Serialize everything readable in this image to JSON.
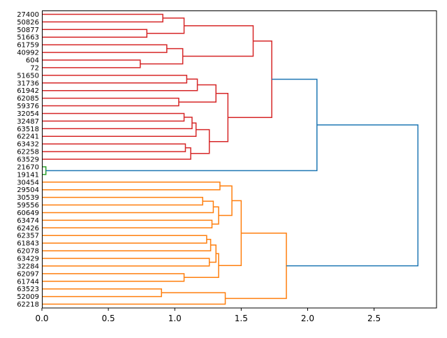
{
  "chart_data": {
    "type": "dendrogram",
    "orientation": "right",
    "xlim": [
      0,
      2.97
    ],
    "xticks": [
      "0.0",
      "0.5",
      "1.0",
      "1.5",
      "2.0",
      "2.5"
    ],
    "xtick_values": [
      0,
      0.5,
      1.0,
      1.5,
      2.0,
      2.5
    ],
    "xlabel": "",
    "ylabel": "",
    "title": "",
    "colors": {
      "red": "#d62728",
      "orange": "#ff7f0e",
      "green": "#2ca02c",
      "blue": "#1f77b4"
    },
    "tree": {
      "h": 2.83,
      "color": "blue",
      "c": [
        {
          "h": 2.07,
          "color": "blue",
          "c": [
            {
              "h": 1.73,
              "color": "red",
              "c": [
                {
                  "h": 1.59,
                  "c": [
                    {
                      "h": 1.07,
                      "c": [
                        {
                          "h": 0.91,
                          "c": [
                            "27400",
                            "50826"
                          ]
                        },
                        {
                          "h": 0.79,
                          "c": [
                            "50877",
                            "51663"
                          ]
                        }
                      ]
                    },
                    {
                      "h": 1.06,
                      "c": [
                        {
                          "h": 0.94,
                          "c": [
                            "61759",
                            "40992"
                          ]
                        },
                        {
                          "h": 0.74,
                          "c": [
                            "604",
                            "72"
                          ]
                        }
                      ]
                    }
                  ]
                },
                {
                  "h": 1.4,
                  "c": [
                    {
                      "h": 1.31,
                      "c": [
                        {
                          "h": 1.17,
                          "c": [
                            {
                              "h": 1.09,
                              "c": [
                                "51650",
                                "31736"
                              ]
                            },
                            "61942"
                          ]
                        },
                        {
                          "h": 1.03,
                          "c": [
                            "62085",
                            "59376"
                          ]
                        }
                      ]
                    },
                    {
                      "h": 1.26,
                      "c": [
                        {
                          "h": 1.16,
                          "c": [
                            {
                              "h": 1.13,
                              "c": [
                                {
                                  "h": 1.07,
                                  "c": [
                                    "32054",
                                    "32487"
                                  ]
                                },
                                "63518"
                              ]
                            },
                            "62241"
                          ]
                        },
                        {
                          "h": 1.12,
                          "c": [
                            {
                              "h": 1.08,
                              "c": [
                                "63432",
                                "62258"
                              ]
                            },
                            "63529"
                          ]
                        }
                      ]
                    }
                  ]
                }
              ]
            },
            {
              "h": 0.03,
              "color": "green",
              "c": [
                "21670",
                "19141"
              ]
            }
          ]
        },
        {
          "h": 1.84,
          "color": "orange",
          "c": [
            {
              "h": 1.5,
              "c": [
                {
                  "h": 1.43,
                  "c": [
                    {
                      "h": 1.34,
                      "c": [
                        "30454",
                        "29504"
                      ]
                    },
                    {
                      "h": 1.33,
                      "c": [
                        {
                          "h": 1.29,
                          "c": [
                            {
                              "h": 1.21,
                              "c": [
                                "30539",
                                "59556"
                              ]
                            },
                            "60649"
                          ]
                        },
                        {
                          "h": 1.28,
                          "c": [
                            "63474",
                            "62426"
                          ]
                        }
                      ]
                    }
                  ]
                },
                {
                  "h": 1.33,
                  "c": [
                    {
                      "h": 1.31,
                      "c": [
                        {
                          "h": 1.27,
                          "c": [
                            {
                              "h": 1.24,
                              "c": [
                                "62357",
                                "61843"
                              ]
                            },
                            "62078"
                          ]
                        },
                        {
                          "h": 1.26,
                          "c": [
                            "63429",
                            "32284"
                          ]
                        }
                      ]
                    },
                    {
                      "h": 1.07,
                      "c": [
                        "62097",
                        "61744"
                      ]
                    }
                  ]
                }
              ]
            },
            {
              "h": 1.38,
              "c": [
                {
                  "h": 0.9,
                  "c": [
                    "63523",
                    "52009"
                  ]
                },
                "62218"
              ]
            }
          ]
        }
      ]
    }
  }
}
